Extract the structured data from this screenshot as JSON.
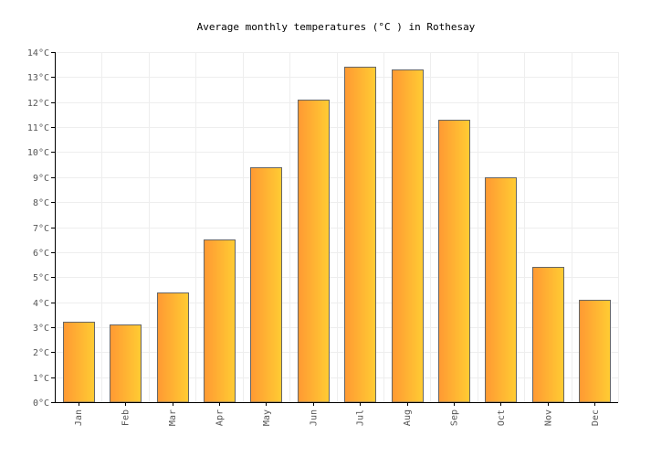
{
  "chart_data": {
    "type": "bar",
    "title": "Average monthly temperatures (°C ) in Rothesay",
    "xlabel": "",
    "ylabel": "",
    "categories": [
      "Jan",
      "Feb",
      "Mar",
      "Apr",
      "May",
      "Jun",
      "Jul",
      "Aug",
      "Sep",
      "Oct",
      "Nov",
      "Dec"
    ],
    "values": [
      3.2,
      3.1,
      4.4,
      6.5,
      9.4,
      12.1,
      13.4,
      13.3,
      11.3,
      9.0,
      5.4,
      4.1
    ],
    "ylim": [
      0,
      14
    ],
    "yticks": [
      "0°C",
      "1°C",
      "2°C",
      "3°C",
      "4°C",
      "5°C",
      "6°C",
      "7°C",
      "8°C",
      "9°C",
      "10°C",
      "11°C",
      "12°C",
      "13°C",
      "14°C"
    ],
    "grid": true,
    "legend": "none",
    "colors": {
      "bar_left": "#ff9933",
      "bar_right": "#ffcc33",
      "bar_stroke": "#666666",
      "grid": "#eeeeee",
      "axis": "#000000"
    }
  }
}
